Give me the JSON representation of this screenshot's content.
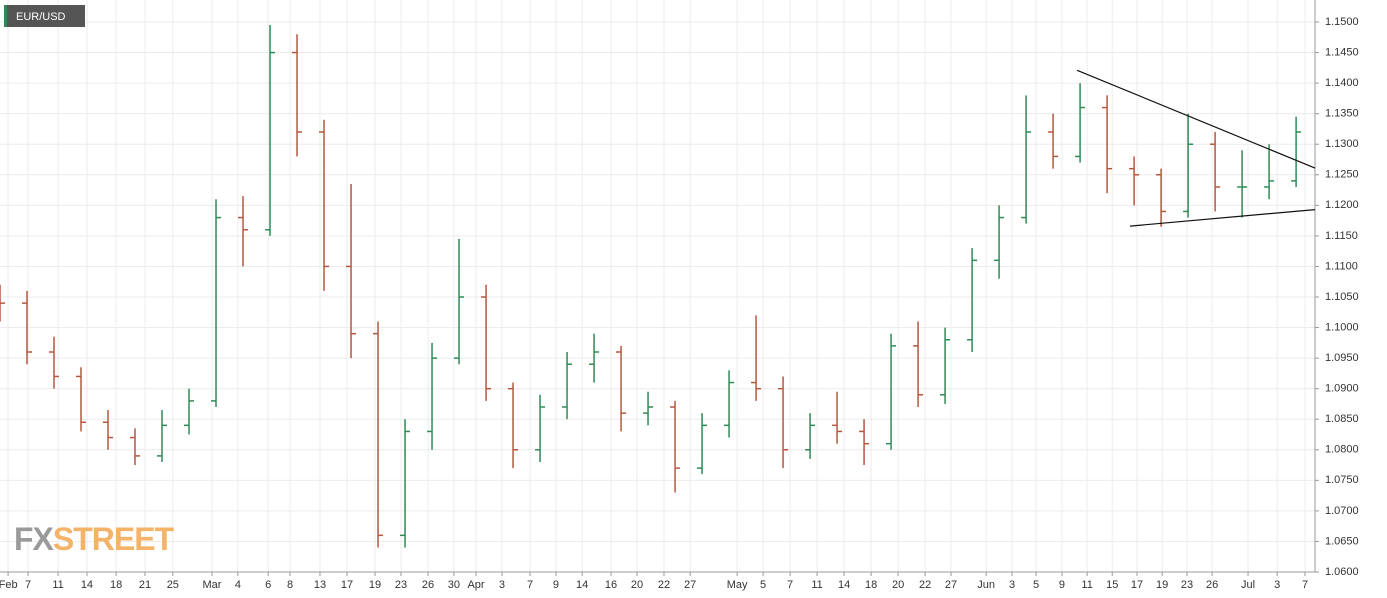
{
  "chart_data": {
    "type": "ohlc",
    "title": "EUR/USD",
    "watermark": [
      "FX",
      "STREET"
    ],
    "up_color": "#2e8b57",
    "down_color": "#b5573f",
    "grid": true,
    "x": [
      0,
      1,
      2,
      3,
      4,
      5,
      6,
      7,
      8,
      9,
      10,
      11,
      12,
      13,
      14,
      15,
      16,
      17,
      18,
      19,
      20,
      21,
      22,
      23,
      24,
      25,
      26,
      27,
      28,
      29,
      30,
      31,
      32,
      33,
      34,
      35,
      36,
      37,
      38,
      39,
      40,
      41,
      42,
      43,
      44,
      45,
      46,
      47,
      48
    ],
    "series": [
      {
        "name": "EUR/USD",
        "open": [
          1.105,
          1.104,
          1.096,
          1.092,
          1.0845,
          1.082,
          1.079,
          1.084,
          1.088,
          1.118,
          1.116,
          1.145,
          1.132,
          1.11,
          1.099,
          1.066,
          1.083,
          1.095,
          1.105,
          1.09,
          1.08,
          1.087,
          1.094,
          1.096,
          1.086,
          1.087,
          1.077,
          1.084,
          1.091,
          1.09,
          1.08,
          1.084,
          1.083,
          1.081,
          1.097,
          1.089,
          1.098,
          1.111,
          1.118,
          1.132,
          1.128,
          1.136,
          1.126,
          1.125,
          1.119,
          1.13,
          1.123,
          1.123,
          1.124
        ],
        "high": [
          1.107,
          1.106,
          1.0985,
          1.0935,
          1.0865,
          1.0835,
          1.0865,
          1.09,
          1.121,
          1.1215,
          1.1495,
          1.148,
          1.134,
          1.1235,
          1.101,
          1.085,
          1.0975,
          1.1145,
          1.107,
          1.091,
          1.089,
          1.096,
          1.099,
          1.097,
          1.0895,
          1.088,
          1.086,
          1.093,
          1.102,
          1.092,
          1.086,
          1.0895,
          1.085,
          1.099,
          1.101,
          1.1,
          1.113,
          1.12,
          1.138,
          1.135,
          1.14,
          1.138,
          1.128,
          1.126,
          1.135,
          1.132,
          1.129,
          1.13,
          1.1345
        ],
        "low": [
          1.101,
          1.094,
          1.09,
          1.083,
          1.08,
          1.0775,
          1.078,
          1.0825,
          1.087,
          1.11,
          1.115,
          1.128,
          1.106,
          1.095,
          1.064,
          1.064,
          1.08,
          1.094,
          1.088,
          1.077,
          1.078,
          1.085,
          1.091,
          1.083,
          1.084,
          1.073,
          1.076,
          1.082,
          1.088,
          1.077,
          1.0785,
          1.081,
          1.0775,
          1.08,
          1.087,
          1.0875,
          1.096,
          1.108,
          1.117,
          1.126,
          1.127,
          1.122,
          1.12,
          1.1165,
          1.118,
          1.119,
          1.118,
          1.121,
          1.123
        ],
        "close": [
          1.104,
          1.096,
          1.092,
          1.0845,
          1.082,
          1.079,
          1.084,
          1.088,
          1.118,
          1.116,
          1.145,
          1.132,
          1.11,
          1.099,
          1.066,
          1.083,
          1.095,
          1.105,
          1.09,
          1.08,
          1.087,
          1.094,
          1.096,
          1.086,
          1.087,
          1.077,
          1.084,
          1.091,
          1.09,
          1.08,
          1.084,
          1.083,
          1.081,
          1.097,
          1.089,
          1.098,
          1.111,
          1.118,
          1.132,
          1.128,
          1.136,
          1.126,
          1.125,
          1.119,
          1.13,
          1.123,
          1.123,
          1.124,
          1.132
        ]
      }
    ],
    "trendlines": [
      {
        "x": [
          39.89,
          48.7
        ],
        "y": [
          1.1421,
          1.1261
        ]
      },
      {
        "x": [
          41.85,
          48.7
        ],
        "y": [
          1.1166,
          1.1193
        ]
      }
    ],
    "xlim": [
      0,
      48.7
    ],
    "ylim": [
      1.06,
      1.1536
    ],
    "xticks": [
      {
        "value": 0.3,
        "label": "Feb"
      },
      {
        "value": 1.04,
        "label": "7"
      },
      {
        "value": 2.15,
        "label": "11"
      },
      {
        "value": 3.22,
        "label": "14"
      },
      {
        "value": 4.3,
        "label": "18"
      },
      {
        "value": 5.37,
        "label": "21"
      },
      {
        "value": 6.4,
        "label": "25"
      },
      {
        "value": 7.85,
        "label": "Mar"
      },
      {
        "value": 8.81,
        "label": "4"
      },
      {
        "value": 9.93,
        "label": "6"
      },
      {
        "value": 10.74,
        "label": "8"
      },
      {
        "value": 11.85,
        "label": "13"
      },
      {
        "value": 12.85,
        "label": "17"
      },
      {
        "value": 13.89,
        "label": "19"
      },
      {
        "value": 14.85,
        "label": "23"
      },
      {
        "value": 15.85,
        "label": "26"
      },
      {
        "value": 16.81,
        "label": "30"
      },
      {
        "value": 17.63,
        "label": "Apr"
      },
      {
        "value": 18.59,
        "label": "3"
      },
      {
        "value": 19.63,
        "label": "7"
      },
      {
        "value": 20.59,
        "label": "9"
      },
      {
        "value": 21.56,
        "label": "14"
      },
      {
        "value": 22.63,
        "label": "16"
      },
      {
        "value": 23.59,
        "label": "20"
      },
      {
        "value": 24.59,
        "label": "22"
      },
      {
        "value": 25.56,
        "label": "27"
      },
      {
        "value": 27.3,
        "label": "May"
      },
      {
        "value": 28.26,
        "label": "5"
      },
      {
        "value": 29.26,
        "label": "7"
      },
      {
        "value": 30.26,
        "label": "11"
      },
      {
        "value": 31.26,
        "label": "14"
      },
      {
        "value": 32.26,
        "label": "18"
      },
      {
        "value": 33.26,
        "label": "20"
      },
      {
        "value": 34.26,
        "label": "22"
      },
      {
        "value": 35.22,
        "label": "27"
      },
      {
        "value": 36.52,
        "label": "Jun"
      },
      {
        "value": 37.48,
        "label": "3"
      },
      {
        "value": 38.37,
        "label": "5"
      },
      {
        "value": 39.33,
        "label": "9"
      },
      {
        "value": 40.26,
        "label": "11"
      },
      {
        "value": 41.19,
        "label": "15"
      },
      {
        "value": 42.11,
        "label": "17"
      },
      {
        "value": 43.04,
        "label": "19"
      },
      {
        "value": 43.96,
        "label": "23"
      },
      {
        "value": 44.89,
        "label": "26"
      },
      {
        "value": 46.22,
        "label": "Jul"
      },
      {
        "value": 47.3,
        "label": "3"
      },
      {
        "value": 48.33,
        "label": "7"
      }
    ],
    "yticks": [
      {
        "value": 1.06,
        "label": "1.0600"
      },
      {
        "value": 1.065,
        "label": "1.0650"
      },
      {
        "value": 1.07,
        "label": "1.0700"
      },
      {
        "value": 1.075,
        "label": "1.0750"
      },
      {
        "value": 1.08,
        "label": "1.0800"
      },
      {
        "value": 1.085,
        "label": "1.0850"
      },
      {
        "value": 1.09,
        "label": "1.0900"
      },
      {
        "value": 1.095,
        "label": "1.0950"
      },
      {
        "value": 1.1,
        "label": "1.1000"
      },
      {
        "value": 1.105,
        "label": "1.1050"
      },
      {
        "value": 1.11,
        "label": "1.1100"
      },
      {
        "value": 1.115,
        "label": "1.1150"
      },
      {
        "value": 1.12,
        "label": "1.1200"
      },
      {
        "value": 1.125,
        "label": "1.1250"
      },
      {
        "value": 1.13,
        "label": "1.1300"
      },
      {
        "value": 1.135,
        "label": "1.1350"
      },
      {
        "value": 1.14,
        "label": "1.1400"
      },
      {
        "value": 1.145,
        "label": "1.1450"
      },
      {
        "value": 1.15,
        "label": "1.1500"
      }
    ]
  }
}
